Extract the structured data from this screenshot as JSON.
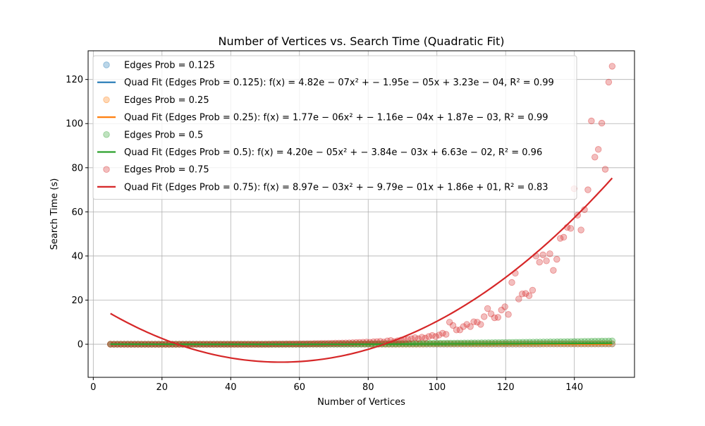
{
  "chart_data": {
    "type": "scatter",
    "title": "Number of Vertices vs. Search Time (Quadratic Fit)",
    "xlabel": "Number of Vertices",
    "ylabel": "Search Time (s)",
    "xlim": [
      -1.5,
      157.5
    ],
    "ylim": [
      -15,
      133
    ],
    "xticks": [
      0,
      20,
      40,
      60,
      80,
      100,
      120,
      140
    ],
    "yticks": [
      0,
      20,
      40,
      60,
      80,
      100,
      120
    ],
    "grid": true,
    "legend_position": "upper-left",
    "fit_x_range": [
      5,
      151
    ],
    "series": [
      {
        "name": "Edges Prob = 0.125",
        "color": "#1f77b4",
        "fit_label": "Quad Fit (Edges Prob = 0.125): f(x) = 4.82e − 07x² + − 1.95e − 05x + 3.23e − 04, R² = 0.99",
        "fit_coeffs": [
          4.82e-07,
          -1.95e-05,
          0.000323
        ],
        "points": {
          "x_start": 5,
          "x_end": 151,
          "note_flat": true,
          "y": [
            0.0003,
            0.0003,
            0.0003,
            0.0003,
            0.0003,
            0.0004,
            0.0004,
            0.0004,
            0.0004,
            0.0005,
            0.0005,
            0.0006,
            0.0006,
            0.0007,
            0.0008,
            0.0009,
            0.001,
            0.0011,
            0.0012,
            0.0013,
            0.0014,
            0.0015,
            0.0017,
            0.0018,
            0.002,
            0.0021,
            0.0023,
            0.0025,
            0.0027,
            0.0029,
            0.0031,
            0.0033,
            0.0035,
            0.0037,
            0.004,
            0.0042,
            0.0045,
            0.0047,
            0.005,
            0.0053,
            0.0056,
            0.0059,
            0.0062,
            0.0065,
            0.0068,
            0.0071,
            0.0075,
            0.0078,
            0.0082,
            0.0086,
            0.009,
            0.0093,
            0.0097,
            0.0102,
            0.0106,
            0.011,
            0.0114,
            0.0119,
            0.0124,
            0.0128,
            0.0133,
            0.0138,
            0.0143,
            0.0148,
            0.0153,
            0.0158,
            0.0164,
            0.0169,
            0.0175,
            0.018,
            0.0186,
            0.0192,
            0.0198,
            0.0204,
            0.021,
            0.0217,
            0.0223,
            0.023,
            0.0236,
            0.0243,
            0.025,
            0.0257,
            0.0264,
            0.0271,
            0.0278,
            0.0285,
            0.0293,
            0.03,
            0.0308,
            0.0316,
            0.0324,
            0.0332,
            0.034,
            0.0348,
            0.0356,
            0.0365,
            0.0373,
            0.0382,
            0.0391,
            0.04,
            0.0409,
            0.0418,
            0.0427,
            0.0436,
            0.0446,
            0.0455,
            0.0465,
            0.0475,
            0.0485,
            0.0495,
            0.0505,
            0.0515,
            0.0525,
            0.0536,
            0.0546,
            0.0557,
            0.0568,
            0.0579,
            0.059,
            0.0601,
            0.0612,
            0.0623,
            0.0635,
            0.0646,
            0.0658,
            0.067,
            0.0682,
            0.0694,
            0.0706,
            0.0718,
            0.0731,
            0.0743,
            0.0756,
            0.0768,
            0.0781,
            0.0794,
            0.0807,
            0.082,
            0.0834,
            0.0847,
            0.086,
            0.0874,
            0.0888,
            0.0902,
            0.0916,
            0.093,
            0.0944
          ]
        }
      },
      {
        "name": "Edges Prob = 0.25",
        "color": "#ff7f0e",
        "fit_label": "Quad Fit (Edges Prob = 0.25): f(x) = 1.77e − 06x² + − 1.16e − 04x + 1.87e − 03, R² = 0.99",
        "fit_coeffs": [
          1.77e-06,
          -0.000116,
          0.00187
        ],
        "points": {
          "x_start": 5,
          "x_end": 151,
          "y": [
            0.001,
            0.001,
            0.001,
            0.001,
            0.001,
            0.001,
            0.001,
            0.001,
            0.001,
            0.001,
            0.001,
            0.001,
            0.001,
            0.001,
            0.001,
            0.001,
            0.001,
            0.001,
            0.002,
            0.002,
            0.002,
            0.002,
            0.002,
            0.002,
            0.003,
            0.003,
            0.003,
            0.003,
            0.004,
            0.004,
            0.004,
            0.005,
            0.005,
            0.005,
            0.006,
            0.006,
            0.007,
            0.007,
            0.008,
            0.008,
            0.009,
            0.009,
            0.01,
            0.01,
            0.011,
            0.012,
            0.012,
            0.013,
            0.014,
            0.014,
            0.015,
            0.016,
            0.017,
            0.017,
            0.018,
            0.019,
            0.02,
            0.021,
            0.022,
            0.023,
            0.024,
            0.025,
            0.026,
            0.027,
            0.028,
            0.029,
            0.03,
            0.031,
            0.032,
            0.034,
            0.035,
            0.036,
            0.037,
            0.039,
            0.04,
            0.041,
            0.043,
            0.044,
            0.045,
            0.047,
            0.048,
            0.05,
            0.051,
            0.053,
            0.054,
            0.056,
            0.058,
            0.059,
            0.061,
            0.063,
            0.064,
            0.066,
            0.068,
            0.07,
            0.071,
            0.073,
            0.075,
            0.077,
            0.079,
            0.081,
            0.083,
            0.085,
            0.087,
            0.089,
            0.091,
            0.093,
            0.095,
            0.097,
            0.099,
            0.102,
            0.104,
            0.106,
            0.108,
            0.111,
            0.113,
            0.115,
            0.118,
            0.12,
            0.122,
            0.125,
            0.127,
            0.13,
            0.132,
            0.135,
            0.137,
            0.14,
            0.143,
            0.145,
            0.148,
            0.151,
            0.153,
            0.156,
            0.159,
            0.162,
            0.165,
            0.167,
            0.17,
            0.173,
            0.176,
            0.179,
            0.182,
            0.185,
            0.188,
            0.191,
            0.194,
            0.198,
            0.201
          ]
        }
      },
      {
        "name": "Edges Prob = 0.5",
        "color": "#2ca02c",
        "fit_label": "Quad Fit (Edges Prob = 0.5): f(x) = 4.20e − 05x² + − 3.84e − 03x + 6.63e − 02, R² = 0.96",
        "fit_coeffs": [
          4.2e-05,
          -0.00384,
          0.0663
        ],
        "points": {
          "x_start": 5,
          "x_end": 151,
          "y": [
            0.05,
            0.04,
            0.04,
            0.03,
            0.03,
            0.03,
            0.02,
            0.02,
            0.02,
            0.01,
            0.01,
            0.01,
            0.0,
            0.0,
            0.0,
            0.0,
            0.0,
            0.0,
            0.0,
            0.0,
            0.0,
            0.0,
            0.0,
            0.0,
            0.0,
            0.0,
            0.0,
            0.0,
            0.0,
            0.0,
            0.0,
            0.0,
            0.0,
            0.0,
            0.0,
            0.0,
            0.0,
            0.0,
            0.0,
            0.0,
            0.0,
            0.0,
            0.0,
            0.0,
            0.01,
            0.01,
            0.01,
            0.01,
            0.02,
            0.02,
            0.03,
            0.03,
            0.04,
            0.04,
            0.05,
            0.05,
            0.06,
            0.06,
            0.07,
            0.08,
            0.08,
            0.09,
            0.1,
            0.1,
            0.11,
            0.12,
            0.13,
            0.14,
            0.14,
            0.15,
            0.16,
            0.17,
            0.18,
            0.19,
            0.2,
            0.21,
            0.22,
            0.23,
            0.24,
            0.25,
            0.26,
            0.27,
            0.28,
            0.3,
            0.31,
            0.32,
            0.33,
            0.35,
            0.36,
            0.37,
            0.39,
            0.4,
            0.41,
            0.43,
            0.44,
            0.46,
            0.47,
            0.49,
            0.5,
            0.52,
            0.53,
            0.55,
            0.57,
            0.58,
            0.6,
            0.62,
            0.63,
            0.65,
            0.67,
            0.69,
            0.7,
            0.72,
            0.74,
            0.76,
            0.78,
            0.8,
            0.82,
            0.84,
            0.86,
            0.88,
            0.9,
            0.92,
            0.94,
            0.96,
            0.98,
            1.0,
            1.02,
            1.05,
            1.07,
            1.09,
            1.11,
            1.14,
            1.16,
            1.18,
            1.21,
            1.23,
            1.25,
            1.28,
            1.3,
            1.33,
            1.35,
            1.38,
            1.4,
            1.43,
            1.45,
            1.48,
            1.5
          ]
        }
      },
      {
        "name": "Edges Prob = 0.75",
        "color": "#d62728",
        "fit_label": "Quad Fit (Edges Prob = 0.75): f(x) = 8.97e − 03x² + − 9.79e − 01x + 1.86e + 01, R² = 0.83",
        "fit_coeffs": [
          0.00897,
          -0.979,
          18.6
        ],
        "points": {
          "x_start": 5,
          "x_end": 151,
          "y": [
            0.0,
            0.0,
            0.0,
            0.0,
            0.0,
            0.0,
            0.0,
            0.0,
            0.0,
            0.0,
            0.0,
            0.0,
            0.0,
            0.0,
            0.0,
            0.0,
            0.0,
            0.0,
            0.0,
            0.0,
            0.0,
            0.0,
            0.0,
            0.0,
            0.0,
            0.0,
            0.0,
            0.0,
            0.0,
            0.0,
            0.0,
            0.0,
            0.0,
            0.0,
            0.0,
            0.0,
            0.0,
            0.0,
            0.0,
            0.0,
            0.0,
            0.0,
            0.0,
            0.0,
            0.0,
            0.05,
            0.05,
            0.1,
            0.1,
            0.1,
            0.1,
            0.15,
            0.15,
            0.15,
            0.2,
            0.2,
            0.2,
            0.25,
            0.25,
            0.3,
            0.3,
            0.35,
            0.35,
            0.4,
            0.45,
            0.5,
            0.5,
            0.55,
            0.6,
            0.65,
            0.7,
            0.8,
            0.85,
            0.9,
            1.0,
            0.9,
            1.1,
            1.2,
            1.3,
            1.0,
            1.5,
            1.7,
            1.2,
            1.6,
            1.9,
            2.0,
            2.2,
            2.5,
            3.0,
            2.5,
            3.2,
            2.8,
            3.5,
            4.0,
            3.5,
            4.2,
            5.0,
            4.5,
            10.0,
            8.5,
            6.5,
            6.5,
            8.0,
            9.0,
            8.0,
            10.2,
            10.0,
            9.0,
            12.5,
            16.2,
            13.8,
            12.0,
            12.2,
            15.5,
            17.0,
            13.5,
            28.0,
            32.2,
            20.5,
            22.8,
            23.0,
            22.0,
            24.5,
            40.0,
            37.2,
            40.5,
            37.8,
            41.0,
            33.5,
            38.5,
            48.0,
            48.5,
            53.0,
            52.5,
            70.5,
            58.5,
            51.8,
            61.0,
            70.0,
            101.2,
            84.8,
            88.3,
            100.2,
            79.3,
            118.8,
            126.0
          ]
        }
      }
    ]
  }
}
